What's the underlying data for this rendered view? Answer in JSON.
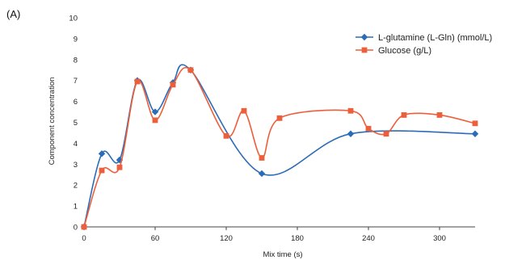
{
  "chart_data": {
    "type": "line",
    "panel_label": "(A)",
    "xlabel": "Mix time (s)",
    "ylabel": "Component concentration",
    "xlim": [
      0,
      330
    ],
    "ylim": [
      0,
      10
    ],
    "xticks": [
      0,
      60,
      120,
      180,
      240,
      300
    ],
    "yticks": [
      0,
      1,
      2,
      3,
      4,
      5,
      6,
      7,
      8,
      9,
      10
    ],
    "smooth": true,
    "grid": false,
    "legend_position": "top-right",
    "series": [
      {
        "name": "L-glutamine (L-Gln) (mmol/L)",
        "color": "#2b6cb8",
        "marker": "diamond",
        "points": [
          [
            0,
            0
          ],
          [
            15,
            3.5
          ],
          [
            30,
            3.2
          ],
          [
            45,
            7.0
          ],
          [
            60,
            5.5
          ],
          [
            75,
            6.9
          ],
          [
            90,
            7.5
          ],
          [
            150,
            2.55
          ],
          [
            225,
            4.45
          ],
          [
            330,
            4.45
          ]
        ]
      },
      {
        "name": "Glucose (g/L)",
        "color": "#ed5e3a",
        "marker": "square",
        "points": [
          [
            0,
            0
          ],
          [
            15,
            2.7
          ],
          [
            30,
            2.85
          ],
          [
            45,
            6.95
          ],
          [
            60,
            5.1
          ],
          [
            75,
            6.8
          ],
          [
            90,
            7.5
          ],
          [
            120,
            4.35
          ],
          [
            135,
            5.55
          ],
          [
            150,
            3.3
          ],
          [
            165,
            5.2
          ],
          [
            225,
            5.55
          ],
          [
            240,
            4.7
          ],
          [
            255,
            4.45
          ],
          [
            270,
            5.35
          ],
          [
            300,
            5.35
          ],
          [
            330,
            4.95
          ]
        ]
      }
    ]
  }
}
